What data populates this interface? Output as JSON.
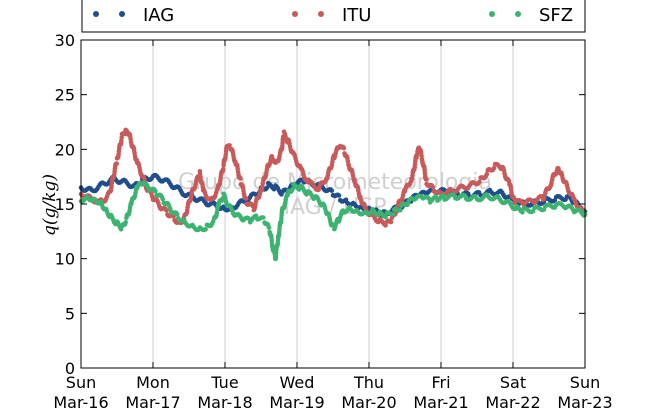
{
  "chart_data": {
    "type": "scatter",
    "title": "",
    "ylabel": "q(g/kg)",
    "xlabel": "",
    "ylim": [
      0,
      30
    ],
    "xlim": [
      0,
      7
    ],
    "yticks": [
      0,
      5,
      10,
      15,
      20,
      25,
      30
    ],
    "xticks": [
      {
        "x": 0,
        "day": "Sun",
        "date": "Mar-16"
      },
      {
        "x": 1,
        "day": "Mon",
        "date": "Mar-17"
      },
      {
        "x": 2,
        "day": "Tue",
        "date": "Mar-18"
      },
      {
        "x": 3,
        "day": "Wed",
        "date": "Mar-19"
      },
      {
        "x": 4,
        "day": "Thu",
        "date": "Mar-20"
      },
      {
        "x": 5,
        "day": "Fri",
        "date": "Mar-21"
      },
      {
        "x": 6,
        "day": "Sat",
        "date": "Mar-22"
      },
      {
        "x": 7,
        "day": "Sun",
        "date": "Mar-23"
      }
    ],
    "grid": "vertical",
    "legend_position": "top",
    "watermark": [
      "Grupo de Micrometeorologia",
      "IAG / USP"
    ],
    "series": [
      {
        "name": "IAG",
        "color": "#1f4e8c",
        "points": [
          [
            0,
            16.5
          ],
          [
            0.15,
            16.2
          ],
          [
            0.3,
            16.8
          ],
          [
            0.45,
            17.3
          ],
          [
            0.6,
            17.0
          ],
          [
            0.75,
            16.6
          ],
          [
            0.85,
            17.2
          ],
          [
            1.0,
            17.5
          ],
          [
            1.15,
            17.2
          ],
          [
            1.3,
            16.6
          ],
          [
            1.45,
            15.9
          ],
          [
            1.6,
            15.5
          ],
          [
            1.75,
            15.1
          ],
          [
            1.9,
            14.8
          ],
          [
            2.0,
            14.6
          ],
          [
            2.1,
            14.7
          ],
          [
            2.25,
            15.2
          ],
          [
            2.4,
            15.8
          ],
          [
            2.5,
            16.3
          ],
          [
            2.6,
            16.7
          ],
          [
            2.7,
            16.5
          ],
          [
            2.8,
            16.0
          ],
          [
            2.9,
            16.4
          ],
          [
            3.0,
            16.9
          ],
          [
            3.1,
            17.1
          ],
          [
            3.25,
            16.8
          ],
          [
            3.4,
            16.4
          ],
          [
            3.5,
            16.0
          ],
          [
            3.6,
            15.5
          ],
          [
            3.7,
            15.2
          ],
          [
            3.8,
            15.0
          ],
          [
            3.9,
            14.7
          ],
          [
            4.0,
            14.5
          ],
          [
            4.1,
            14.3
          ],
          [
            4.2,
            14.1
          ],
          [
            4.35,
            14.5
          ],
          [
            4.5,
            15.0
          ],
          [
            4.6,
            15.5
          ],
          [
            4.7,
            15.8
          ],
          [
            4.8,
            16.0
          ],
          [
            4.95,
            16.2
          ],
          [
            5.1,
            16.1
          ],
          [
            5.25,
            15.9
          ],
          [
            5.4,
            15.8
          ],
          [
            5.55,
            15.9
          ],
          [
            5.7,
            16.1
          ],
          [
            5.85,
            16.0
          ],
          [
            6.0,
            15.3
          ],
          [
            6.15,
            15.0
          ],
          [
            6.3,
            15.1
          ],
          [
            6.45,
            15.3
          ],
          [
            6.6,
            15.5
          ],
          [
            6.75,
            15.6
          ],
          [
            6.85,
            15.2
          ],
          [
            7.0,
            14.3
          ]
        ]
      },
      {
        "name": "ITU",
        "color": "#c85a5a",
        "points": [
          [
            0,
            16.0
          ],
          [
            0.15,
            15.4
          ],
          [
            0.3,
            15.2
          ],
          [
            0.4,
            16.0
          ],
          [
            0.5,
            19.0
          ],
          [
            0.57,
            21.2
          ],
          [
            0.62,
            21.6
          ],
          [
            0.67,
            21.3
          ],
          [
            0.72,
            20.2
          ],
          [
            0.78,
            18.8
          ],
          [
            0.85,
            17.6
          ],
          [
            0.92,
            16.4
          ],
          [
            1.0,
            15.6
          ],
          [
            1.1,
            14.8
          ],
          [
            1.2,
            14.2
          ],
          [
            1.3,
            13.6
          ],
          [
            1.38,
            13.3
          ],
          [
            1.45,
            14.0
          ],
          [
            1.55,
            16.2
          ],
          [
            1.65,
            17.8
          ],
          [
            1.7,
            16.2
          ],
          [
            1.8,
            15.2
          ],
          [
            1.9,
            16.3
          ],
          [
            1.98,
            18.5
          ],
          [
            2.03,
            20.3
          ],
          [
            2.08,
            20.1
          ],
          [
            2.15,
            18.8
          ],
          [
            2.22,
            17.0
          ],
          [
            2.3,
            15.2
          ],
          [
            2.4,
            14.6
          ],
          [
            2.5,
            16.3
          ],
          [
            2.6,
            18.5
          ],
          [
            2.65,
            19.3
          ],
          [
            2.72,
            18.8
          ],
          [
            2.78,
            19.8
          ],
          [
            2.82,
            21.4
          ],
          [
            2.88,
            20.7
          ],
          [
            2.95,
            19.5
          ],
          [
            3.05,
            18.2
          ],
          [
            3.15,
            17.0
          ],
          [
            3.3,
            16.4
          ],
          [
            3.42,
            17.5
          ],
          [
            3.52,
            19.4
          ],
          [
            3.6,
            20.5
          ],
          [
            3.66,
            19.8
          ],
          [
            3.72,
            18.6
          ],
          [
            3.8,
            17.2
          ],
          [
            3.88,
            15.6
          ],
          [
            3.95,
            14.5
          ],
          [
            4.05,
            13.9
          ],
          [
            4.15,
            13.4
          ],
          [
            4.25,
            13.2
          ],
          [
            4.32,
            13.6
          ],
          [
            4.4,
            14.8
          ],
          [
            4.5,
            16.2
          ],
          [
            4.6,
            17.4
          ],
          [
            4.66,
            19.4
          ],
          [
            4.7,
            20.2
          ],
          [
            4.75,
            18.8
          ],
          [
            4.8,
            17.0
          ],
          [
            4.9,
            16.3
          ],
          [
            5.0,
            16.0
          ],
          [
            5.15,
            16.2
          ],
          [
            5.3,
            16.5
          ],
          [
            5.45,
            16.8
          ],
          [
            5.55,
            17.2
          ],
          [
            5.65,
            17.9
          ],
          [
            5.75,
            18.5
          ],
          [
            5.85,
            18.3
          ],
          [
            5.95,
            16.8
          ],
          [
            6.02,
            15.2
          ],
          [
            6.15,
            15.1
          ],
          [
            6.3,
            15.3
          ],
          [
            6.42,
            15.6
          ],
          [
            6.52,
            16.8
          ],
          [
            6.58,
            17.8
          ],
          [
            6.63,
            18.3
          ],
          [
            6.68,
            17.6
          ],
          [
            6.75,
            16.6
          ],
          [
            6.85,
            15.3
          ],
          [
            7.0,
            14.0
          ]
        ]
      },
      {
        "name": "SFZ",
        "color": "#3cb371",
        "points": [
          [
            0,
            15.4
          ],
          [
            0.1,
            15.6
          ],
          [
            0.2,
            15.4
          ],
          [
            0.28,
            15.1
          ],
          [
            0.35,
            14.4
          ],
          [
            0.42,
            13.8
          ],
          [
            0.5,
            13.2
          ],
          [
            0.57,
            12.8
          ],
          [
            0.63,
            13.6
          ],
          [
            0.7,
            15.0
          ],
          [
            0.78,
            16.5
          ],
          [
            0.85,
            16.9
          ],
          [
            0.95,
            16.4
          ],
          [
            1.05,
            16.0
          ],
          [
            1.15,
            15.3
          ],
          [
            1.25,
            14.5
          ],
          [
            1.35,
            13.8
          ],
          [
            1.45,
            13.3
          ],
          [
            1.55,
            13.0
          ],
          [
            1.65,
            12.7
          ],
          [
            1.75,
            12.9
          ],
          [
            1.85,
            13.5
          ],
          [
            1.92,
            15.0
          ],
          [
            1.98,
            15.8
          ],
          [
            2.05,
            14.8
          ],
          [
            2.15,
            14.0
          ],
          [
            2.25,
            13.6
          ],
          [
            2.35,
            13.5
          ],
          [
            2.45,
            13.8
          ],
          [
            2.55,
            13.5
          ],
          [
            2.62,
            12.6
          ],
          [
            2.66,
            11.2
          ],
          [
            2.7,
            10.0
          ],
          [
            2.74,
            12.0
          ],
          [
            2.8,
            14.5
          ],
          [
            2.88,
            16.0
          ],
          [
            2.95,
            16.6
          ],
          [
            3.05,
            16.5
          ],
          [
            3.15,
            16.0
          ],
          [
            3.25,
            15.6
          ],
          [
            3.35,
            15.0
          ],
          [
            3.42,
            14.2
          ],
          [
            3.48,
            13.2
          ],
          [
            3.52,
            12.9
          ],
          [
            3.58,
            13.6
          ],
          [
            3.65,
            14.4
          ],
          [
            3.75,
            14.6
          ],
          [
            3.85,
            14.3
          ],
          [
            3.95,
            14.2
          ],
          [
            4.05,
            14.4
          ],
          [
            4.15,
            14.1
          ],
          [
            4.25,
            14.0
          ],
          [
            4.35,
            14.3
          ],
          [
            4.45,
            14.7
          ],
          [
            4.55,
            15.2
          ],
          [
            4.65,
            15.5
          ],
          [
            4.75,
            15.6
          ],
          [
            4.85,
            15.3
          ],
          [
            4.95,
            15.5
          ],
          [
            5.05,
            15.6
          ],
          [
            5.2,
            15.7
          ],
          [
            5.35,
            15.6
          ],
          [
            5.5,
            15.5
          ],
          [
            5.65,
            15.7
          ],
          [
            5.8,
            15.5
          ],
          [
            5.95,
            15.0
          ],
          [
            6.05,
            14.6
          ],
          [
            6.15,
            14.4
          ],
          [
            6.3,
            14.5
          ],
          [
            6.45,
            14.7
          ],
          [
            6.6,
            14.9
          ],
          [
            6.75,
            14.8
          ],
          [
            6.85,
            14.4
          ],
          [
            7.0,
            14.1
          ]
        ]
      }
    ]
  }
}
